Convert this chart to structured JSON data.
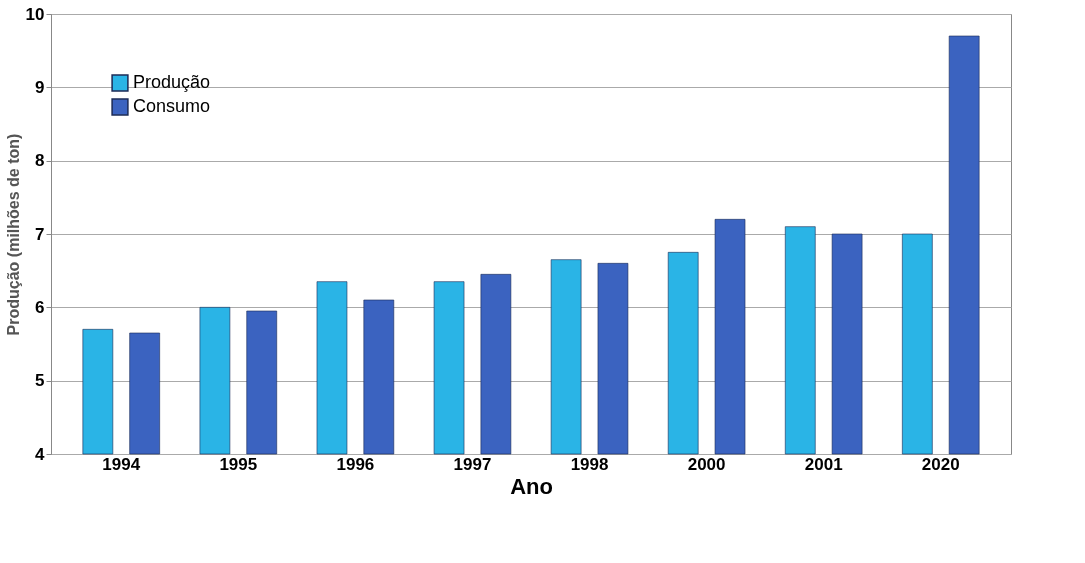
{
  "chart_data": {
    "type": "bar",
    "xlabel": "Ano",
    "ylabel": "Produção (milhões de ton)",
    "categories": [
      "1994",
      "1995",
      "1996",
      "1997",
      "1998",
      "2000",
      "2001",
      "2020"
    ],
    "series": [
      {
        "name": "Produção",
        "color": "#2ab4e6",
        "values": [
          5.7,
          6.0,
          6.35,
          6.35,
          6.65,
          6.75,
          7.1,
          7.0
        ]
      },
      {
        "name": "Consumo",
        "color": "#3b63c0",
        "values": [
          5.65,
          5.95,
          6.1,
          6.45,
          6.6,
          7.2,
          7.0,
          9.7
        ]
      }
    ],
    "ylim": [
      4,
      10
    ],
    "yticks": [
      4,
      5,
      6,
      7,
      8,
      9,
      10
    ],
    "grid": "y",
    "legend": "top left"
  }
}
